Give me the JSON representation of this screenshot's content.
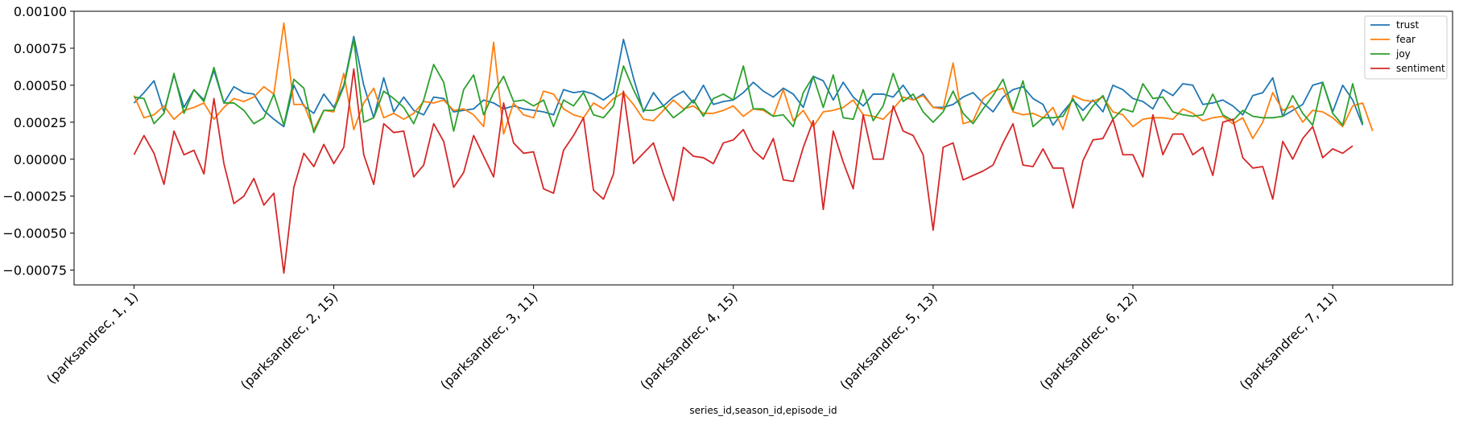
{
  "chart_data": {
    "type": "line",
    "xlabel": "series_id,season_id,episode_id",
    "ylabel": "",
    "ylim": [
      -0.00085,
      0.001
    ],
    "yticks": [
      -0.00075,
      -0.0005,
      -0.00025,
      0.0,
      0.00025,
      0.0005,
      0.00075,
      0.001
    ],
    "ytick_labels": [
      "−0.00075",
      "−0.00050",
      "−0.00025",
      "0.00000",
      "0.00025",
      "0.00050",
      "0.00075",
      "0.00100"
    ],
    "xlim": [
      -6,
      132
    ],
    "xtick_positions": [
      0,
      20,
      40,
      60,
      80,
      100,
      120
    ],
    "xtick_labels": [
      "(parksandrec, 1, 1)",
      "(parksandrec, 2, 15)",
      "(parksandrec, 3, 11)",
      "(parksandrec, 4, 15)",
      "(parksandrec, 5, 13)",
      "(parksandrec, 6, 12)",
      "(parksandrec, 7, 11)"
    ],
    "legend_position": "top-right",
    "grid": false,
    "series": [
      {
        "name": "trust",
        "color": "#1f77b4",
        "values": [
          0.00038,
          0.00045,
          0.00053,
          0.00032,
          0.00057,
          0.00035,
          0.00047,
          0.0004,
          0.0006,
          0.00038,
          0.00049,
          0.00045,
          0.00044,
          0.00033,
          0.00027,
          0.00022,
          0.0005,
          0.00036,
          0.00031,
          0.00044,
          0.00035,
          0.0005,
          0.00083,
          0.0005,
          0.00028,
          0.00055,
          0.00032,
          0.00042,
          0.00033,
          0.0003,
          0.00042,
          0.00041,
          0.00032,
          0.00033,
          0.00034,
          0.0004,
          0.00038,
          0.00034,
          0.00036,
          0.00034,
          0.00033,
          0.00032,
          0.0003,
          0.00047,
          0.00045,
          0.00046,
          0.00044,
          0.0004,
          0.00045,
          0.00081,
          0.00055,
          0.00032,
          0.00045,
          0.00036,
          0.00042,
          0.00046,
          0.00038,
          0.0005,
          0.00037,
          0.00039,
          0.0004,
          0.00045,
          0.00052,
          0.00046,
          0.00042,
          0.00048,
          0.00044,
          0.00035,
          0.00056,
          0.00053,
          0.0004,
          0.00052,
          0.00042,
          0.00036,
          0.00044,
          0.00044,
          0.00042,
          0.0005,
          0.0004,
          0.00044,
          0.00035,
          0.00035,
          0.00037,
          0.00042,
          0.00045,
          0.00038,
          0.00032,
          0.00042,
          0.00047,
          0.00049,
          0.00041,
          0.00037,
          0.00023,
          0.00032,
          0.0004,
          0.00033,
          0.0004,
          0.00032,
          0.0005,
          0.00047,
          0.00041,
          0.00039,
          0.00034,
          0.00047,
          0.00043,
          0.00051,
          0.0005,
          0.00037,
          0.00038,
          0.0004,
          0.00036,
          0.0003,
          0.00043,
          0.00045,
          0.00055,
          0.00029,
          0.00033,
          0.00037,
          0.0005,
          0.00052,
          0.00032,
          0.0005,
          0.0004,
          0.00023
        ]
      },
      {
        "name": "fear",
        "color": "#ff7f0e",
        "values": [
          0.00043,
          0.00028,
          0.0003,
          0.00036,
          0.00027,
          0.00033,
          0.00035,
          0.00038,
          0.00027,
          0.00035,
          0.00041,
          0.00039,
          0.00042,
          0.00049,
          0.00044,
          0.00092,
          0.00037,
          0.00037,
          0.0002,
          0.00033,
          0.00032,
          0.00058,
          0.0002,
          0.00038,
          0.00048,
          0.00028,
          0.00031,
          0.00027,
          0.00031,
          0.00039,
          0.00038,
          0.0004,
          0.00033,
          0.00034,
          0.0003,
          0.00022,
          0.00079,
          0.00017,
          0.00038,
          0.0003,
          0.00028,
          0.00046,
          0.00044,
          0.00034,
          0.0003,
          0.00028,
          0.00038,
          0.00034,
          0.00041,
          0.00045,
          0.00037,
          0.00027,
          0.00026,
          0.00033,
          0.0004,
          0.00034,
          0.00036,
          0.00031,
          0.00031,
          0.00033,
          0.00036,
          0.00029,
          0.00034,
          0.00033,
          0.00029,
          0.00047,
          0.00026,
          0.00033,
          0.00022,
          0.00032,
          0.00033,
          0.00035,
          0.0004,
          0.0003,
          0.00029,
          0.00027,
          0.00034,
          0.00042,
          0.0004,
          0.00043,
          0.00035,
          0.00034,
          0.00065,
          0.00024,
          0.00026,
          0.00041,
          0.00046,
          0.00048,
          0.00032,
          0.0003,
          0.00031,
          0.00028,
          0.00035,
          0.0002,
          0.00043,
          0.0004,
          0.00039,
          0.00042,
          0.00032,
          0.0003,
          0.00022,
          0.00027,
          0.00028,
          0.00028,
          0.00027,
          0.00034,
          0.00031,
          0.00026,
          0.00028,
          0.00029,
          0.00024,
          0.00028,
          0.00014,
          0.00025,
          0.00045,
          0.00033,
          0.00036,
          0.00025,
          0.00033,
          0.00032,
          0.00028,
          0.00022,
          0.00036,
          0.00038,
          0.00019
        ]
      },
      {
        "name": "joy",
        "color": "#2ca02c",
        "values": [
          0.00042,
          0.00041,
          0.00024,
          0.00031,
          0.00058,
          0.00031,
          0.00047,
          0.00039,
          0.00062,
          0.00038,
          0.00038,
          0.00033,
          0.00024,
          0.00028,
          0.00044,
          0.00023,
          0.00054,
          0.00048,
          0.00018,
          0.00033,
          0.00033,
          0.00049,
          0.00081,
          0.00025,
          0.00028,
          0.00046,
          0.00041,
          0.00035,
          0.00024,
          0.0004,
          0.00064,
          0.00052,
          0.00019,
          0.00047,
          0.00057,
          0.0003,
          0.00045,
          0.00056,
          0.00039,
          0.0004,
          0.00036,
          0.0004,
          0.00022,
          0.0004,
          0.00036,
          0.00045,
          0.0003,
          0.00028,
          0.00036,
          0.00063,
          0.00047,
          0.00033,
          0.00033,
          0.00036,
          0.00028,
          0.00033,
          0.0004,
          0.00029,
          0.00041,
          0.00044,
          0.0004,
          0.00063,
          0.00034,
          0.00034,
          0.00029,
          0.0003,
          0.00022,
          0.00045,
          0.00056,
          0.00035,
          0.00057,
          0.00028,
          0.00027,
          0.00047,
          0.00026,
          0.00036,
          0.00058,
          0.00039,
          0.00044,
          0.00032,
          0.00025,
          0.00032,
          0.00046,
          0.00031,
          0.00024,
          0.00034,
          0.00043,
          0.00054,
          0.00033,
          0.00053,
          0.00022,
          0.00028,
          0.00028,
          0.00029,
          0.00041,
          0.00026,
          0.00036,
          0.00043,
          0.00027,
          0.00034,
          0.00032,
          0.00051,
          0.00041,
          0.00042,
          0.00032,
          0.0003,
          0.00029,
          0.0003,
          0.00044,
          0.0003,
          0.00026,
          0.00033,
          0.00029,
          0.00028,
          0.00028,
          0.00029,
          0.00043,
          0.00031,
          0.00023,
          0.00052,
          0.00031,
          0.00023,
          0.00051,
          0.00024
        ]
      },
      {
        "name": "sentiment",
        "color": "#d62728",
        "values": [
          3e-05,
          0.00016,
          4e-05,
          -0.00017,
          0.00019,
          3e-05,
          6e-05,
          -0.0001,
          0.00041,
          -3e-05,
          -0.0003,
          -0.00025,
          -0.00013,
          -0.00031,
          -0.00023,
          -0.00077,
          -0.00019,
          4e-05,
          -5e-05,
          0.0001,
          -3e-05,
          8e-05,
          0.00061,
          3e-05,
          -0.00017,
          0.00024,
          0.00018,
          0.00019,
          -0.00012,
          -4e-05,
          0.00024,
          0.00012,
          -0.00019,
          -9e-05,
          0.00016,
          2e-05,
          -0.00012,
          0.00038,
          0.00011,
          4e-05,
          5e-05,
          -0.0002,
          -0.00023,
          6e-05,
          0.00016,
          0.00028,
          -0.00021,
          -0.00027,
          -0.0001,
          0.00046,
          -3e-05,
          4e-05,
          0.00011,
          -0.0001,
          -0.00028,
          8e-05,
          2e-05,
          1e-05,
          -3e-05,
          0.00011,
          0.00013,
          0.0002,
          6e-05,
          0.0,
          0.00014,
          -0.00014,
          -0.00015,
          8e-05,
          0.00026,
          -0.00034,
          0.00019,
          -2e-05,
          -0.0002,
          0.0003,
          0.0,
          0.0,
          0.00036,
          0.00019,
          0.00016,
          3e-05,
          -0.00048,
          8e-05,
          0.00011,
          -0.00014,
          -0.00011,
          -8e-05,
          -4e-05,
          0.00011,
          0.00024,
          -4e-05,
          -5e-05,
          7e-05,
          -6e-05,
          -6e-05,
          -0.00033,
          -1e-05,
          0.00013,
          0.00014,
          0.00027,
          3e-05,
          3e-05,
          -0.00012,
          0.0003,
          3e-05,
          0.00017,
          0.00017,
          3e-05,
          8e-05,
          -0.00011,
          0.00025,
          0.00027,
          1e-05,
          -6e-05,
          -5e-05,
          -0.00027,
          0.00012,
          0.0,
          0.00014,
          0.00022,
          1e-05,
          7e-05,
          4e-05,
          9e-05
        ]
      }
    ]
  }
}
